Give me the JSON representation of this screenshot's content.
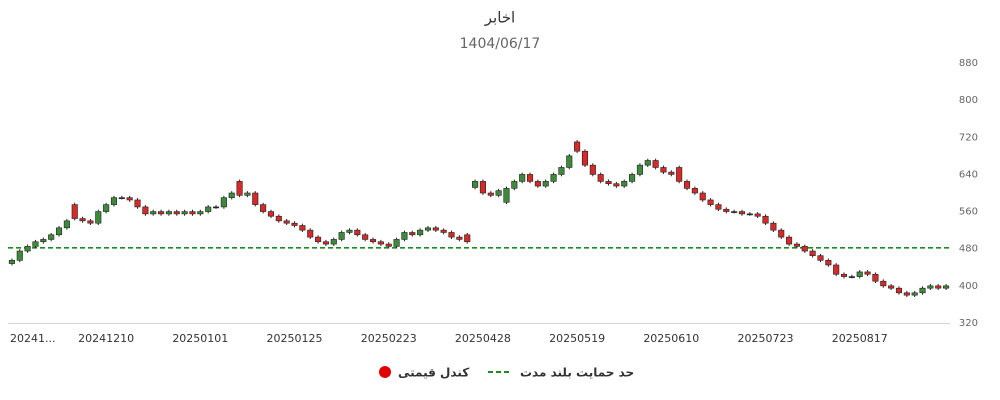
{
  "chart_data": {
    "type": "candlestick",
    "title": "اخابر",
    "subtitle": "1404/06/17",
    "categories": [
      "20241...",
      null,
      null,
      null,
      null,
      null,
      null,
      null,
      null,
      null,
      null,
      null,
      "20241210",
      null,
      null,
      null,
      null,
      null,
      null,
      null,
      null,
      null,
      null,
      null,
      "20250101",
      null,
      null,
      null,
      null,
      null,
      null,
      null,
      null,
      null,
      null,
      null,
      "20250125",
      null,
      null,
      null,
      null,
      null,
      null,
      null,
      null,
      null,
      null,
      null,
      "20250223",
      null,
      null,
      null,
      null,
      null,
      null,
      null,
      null,
      null,
      null,
      null,
      "20250428",
      null,
      null,
      null,
      null,
      null,
      null,
      null,
      null,
      null,
      null,
      null,
      "20250519",
      null,
      null,
      null,
      null,
      null,
      null,
      null,
      null,
      null,
      null,
      null,
      "20250610",
      null,
      null,
      null,
      null,
      null,
      null,
      null,
      null,
      null,
      null,
      null,
      "20250723",
      null,
      null,
      null,
      null,
      null,
      null,
      null,
      null,
      null,
      null,
      null,
      "20250817",
      null,
      null,
      null,
      null,
      null,
      null,
      null,
      null,
      null,
      null,
      null
    ],
    "series": [
      {
        "name": "کندل قیمتی",
        "color": "#e00000",
        "up_color": "#3d8a3d",
        "down_color": "#d42a2a",
        "open": [
          448,
          455,
          475,
          485,
          495,
          500,
          510,
          525,
          575,
          545,
          540,
          535,
          560,
          575,
          590,
          590,
          585,
          570,
          555,
          560,
          555,
          560,
          555,
          560,
          555,
          560,
          570,
          570,
          590,
          625,
          595,
          600,
          575,
          560,
          550,
          540,
          535,
          530,
          520,
          505,
          495,
          490,
          500,
          515,
          520,
          510,
          500,
          495,
          490,
          485,
          500,
          515,
          510,
          520,
          525,
          520,
          515,
          505,
          510,
          612,
          625,
          600,
          595,
          580,
          610,
          625,
          640,
          625,
          615,
          625,
          640,
          655,
          710,
          690,
          660,
          640,
          625,
          620,
          615,
          625,
          640,
          660,
          670,
          655,
          645,
          655,
          625,
          610,
          600,
          585,
          575,
          565,
          560,
          560,
          555,
          555,
          550,
          535,
          520,
          505,
          490,
          485,
          475,
          465,
          455,
          445,
          425,
          420,
          420,
          430,
          425,
          410,
          400,
          395,
          385,
          380,
          385,
          395,
          400,
          395
        ],
        "high": [
          459,
          479,
          489,
          499,
          504,
          514,
          529,
          544,
          579,
          549,
          544,
          564,
          579,
          594,
          594,
          594,
          589,
          574,
          564,
          564,
          564,
          564,
          564,
          564,
          564,
          574,
          574,
          594,
          604,
          629,
          604,
          604,
          579,
          564,
          554,
          544,
          539,
          534,
          524,
          509,
          499,
          504,
          519,
          524,
          524,
          514,
          504,
          499,
          494,
          504,
          519,
          519,
          524,
          529,
          529,
          524,
          519,
          509,
          514,
          629,
          629,
          604,
          609,
          614,
          629,
          644,
          644,
          629,
          629,
          644,
          659,
          684,
          714,
          694,
          664,
          644,
          629,
          624,
          629,
          644,
          664,
          674,
          674,
          659,
          649,
          659,
          629,
          614,
          604,
          589,
          579,
          569,
          564,
          564,
          559,
          559,
          554,
          539,
          524,
          509,
          494,
          489,
          479,
          469,
          459,
          449,
          429,
          424,
          434,
          434,
          429,
          414,
          404,
          399,
          389,
          389,
          399,
          404,
          404,
          404
        ],
        "low": [
          444,
          451,
          471,
          481,
          491,
          496,
          506,
          521,
          541,
          536,
          531,
          531,
          556,
          571,
          586,
          581,
          566,
          551,
          551,
          551,
          551,
          551,
          551,
          551,
          551,
          556,
          566,
          566,
          586,
          591,
          591,
          571,
          556,
          546,
          536,
          531,
          526,
          516,
          501,
          491,
          486,
          486,
          496,
          511,
          506,
          496,
          491,
          486,
          481,
          481,
          496,
          506,
          506,
          516,
          516,
          511,
          501,
          496,
          491,
          608,
          596,
          591,
          591,
          576,
          606,
          621,
          621,
          611,
          611,
          621,
          636,
          651,
          686,
          656,
          636,
          621,
          616,
          611,
          611,
          621,
          636,
          656,
          651,
          641,
          636,
          621,
          606,
          596,
          581,
          571,
          561,
          556,
          556,
          551,
          551,
          546,
          531,
          516,
          501,
          486,
          481,
          471,
          461,
          451,
          441,
          421,
          416,
          416,
          416,
          421,
          406,
          396,
          391,
          381,
          376,
          376,
          381,
          391,
          391,
          391
        ],
        "close": [
          455,
          475,
          485,
          495,
          500,
          510,
          525,
          540,
          545,
          540,
          535,
          560,
          575,
          590,
          590,
          585,
          570,
          555,
          560,
          555,
          560,
          555,
          560,
          555,
          560,
          570,
          570,
          590,
          600,
          595,
          600,
          575,
          560,
          550,
          540,
          535,
          530,
          520,
          505,
          495,
          490,
          500,
          515,
          520,
          510,
          500,
          495,
          490,
          485,
          500,
          515,
          510,
          520,
          525,
          520,
          515,
          505,
          500,
          495,
          625,
          600,
          595,
          605,
          610,
          625,
          640,
          625,
          615,
          625,
          640,
          655,
          680,
          690,
          660,
          640,
          625,
          620,
          615,
          625,
          640,
          660,
          670,
          655,
          645,
          640,
          625,
          610,
          600,
          585,
          575,
          565,
          560,
          560,
          555,
          555,
          550,
          535,
          520,
          505,
          490,
          485,
          475,
          465,
          455,
          445,
          425,
          420,
          420,
          430,
          425,
          410,
          400,
          395,
          385,
          380,
          385,
          395,
          400,
          395,
          400
        ]
      }
    ],
    "support": {
      "name": "حد حمایت بلند مدت",
      "value": 482,
      "color": "#1f8a1f"
    },
    "ylim": [
      320,
      880
    ],
    "yticks": [
      320,
      400,
      480,
      560,
      640,
      720,
      800,
      880
    ],
    "y_axis_side": "right",
    "grid": false
  }
}
